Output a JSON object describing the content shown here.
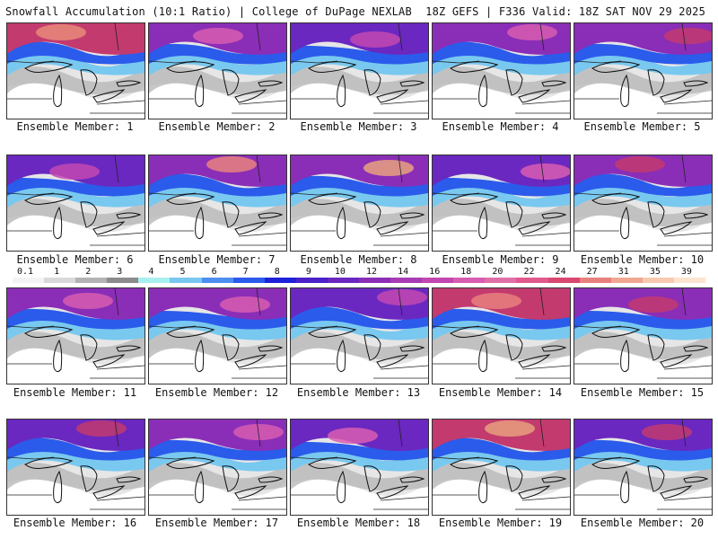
{
  "header": {
    "title_left": "Snowfall Accumulation (10:1 Ratio) | College of DuPage NEXLAB",
    "title_right": "18Z GEFS | F336 Valid: 18Z SAT NOV 29 2025"
  },
  "colorbar": {
    "labels": [
      "0.1",
      "1",
      "2",
      "3",
      "4",
      "5",
      "6",
      "7",
      "8",
      "9",
      "10",
      "12",
      "14",
      "16",
      "18",
      "20",
      "22",
      "24",
      "27",
      "31",
      "35",
      "39"
    ],
    "colors": [
      "#f4f4f4",
      "#d9d9d9",
      "#b3b3b3",
      "#8c8c8c",
      "#a8f0f0",
      "#78c8f0",
      "#4d8ff0",
      "#2a5bea",
      "#1e22d8",
      "#4a22c8",
      "#6b28c0",
      "#8a2eb8",
      "#a83cb4",
      "#c248b0",
      "#d85cb0",
      "#e070a8",
      "#e05a8c",
      "#d84870",
      "#e8807e",
      "#f0a890",
      "#f8cbb0",
      "#fde4d0"
    ]
  },
  "panels": [
    {
      "label": "Ensemble Member: 1"
    },
    {
      "label": "Ensemble Member: 2"
    },
    {
      "label": "Ensemble Member: 3"
    },
    {
      "label": "Ensemble Member: 4"
    },
    {
      "label": "Ensemble Member: 5"
    },
    {
      "label": "Ensemble Member: 6"
    },
    {
      "label": "Ensemble Member: 7"
    },
    {
      "label": "Ensemble Member: 8"
    },
    {
      "label": "Ensemble Member: 9"
    },
    {
      "label": "Ensemble Member: 10"
    },
    {
      "label": "Ensemble Member: 11"
    },
    {
      "label": "Ensemble Member: 12"
    },
    {
      "label": "Ensemble Member: 13"
    },
    {
      "label": "Ensemble Member: 14"
    },
    {
      "label": "Ensemble Member: 15"
    },
    {
      "label": "Ensemble Member: 16"
    },
    {
      "label": "Ensemble Member: 17"
    },
    {
      "label": "Ensemble Member: 18"
    },
    {
      "label": "Ensemble Member: 19"
    },
    {
      "label": "Ensemble Member: 20"
    }
  ]
}
